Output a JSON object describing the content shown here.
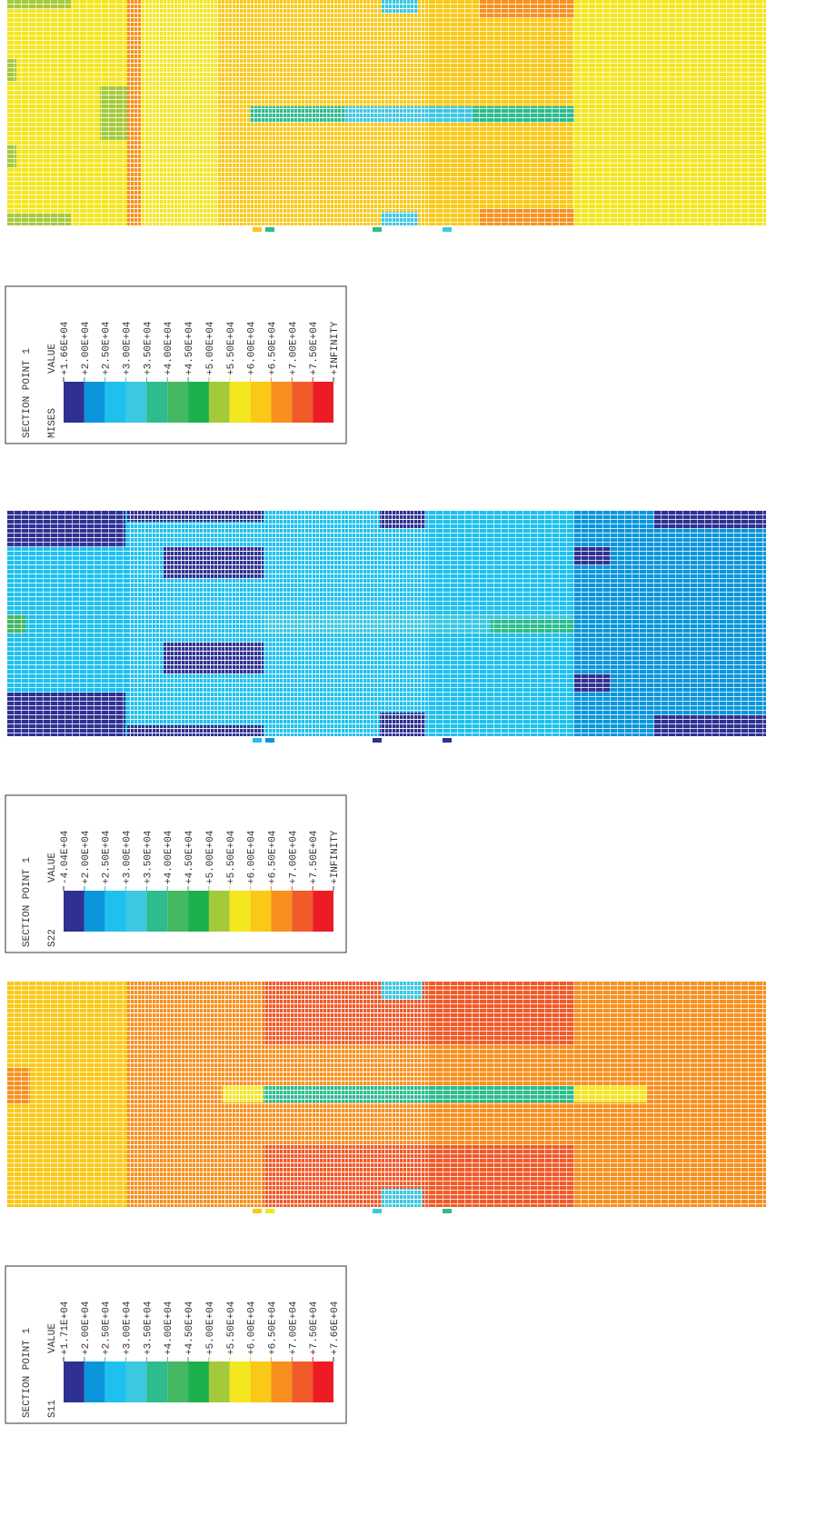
{
  "panels": [
    {
      "legend": {
        "section": "SECTION POINT 1",
        "variable": "MISES",
        "header": "VALUE",
        "labels": [
          "+1.66E+04",
          "+2.00E+04",
          "+2.50E+04",
          "+3.00E+04",
          "+3.50E+04",
          "+4.00E+04",
          "+4.50E+04",
          "+5.00E+04",
          "+5.50E+04",
          "+6.00E+04",
          "+6.50E+04",
          "+7.00E+04",
          "+7.50E+04",
          "+INFINITY"
        ]
      }
    },
    {
      "legend": {
        "section": "SECTION POINT 1",
        "variable": "S22",
        "header": "VALUE",
        "labels": [
          "-4.04E+04",
          "+2.00E+04",
          "+2.50E+04",
          "+3.00E+04",
          "+3.50E+04",
          "+4.00E+04",
          "+4.50E+04",
          "+5.00E+04",
          "+5.50E+04",
          "+6.00E+04",
          "+6.50E+04",
          "+7.00E+04",
          "+7.50E+04",
          "+INFINITY"
        ]
      }
    },
    {
      "legend": {
        "section": "SECTION POINT 1",
        "variable": "S11",
        "header": "VALUE",
        "labels": [
          "+1.71E+04",
          "+2.00E+04",
          "+2.50E+04",
          "+3.00E+04",
          "+3.50E+04",
          "+4.00E+04",
          "+4.50E+04",
          "+5.00E+04",
          "+5.50E+04",
          "+6.00E+04",
          "+6.50E+04",
          "+7.00E+04",
          "+7.50E+04",
          "+7.66E+04"
        ]
      }
    }
  ]
}
